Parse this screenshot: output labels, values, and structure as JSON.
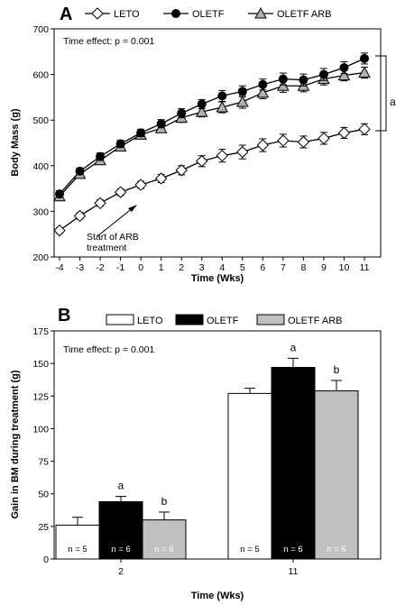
{
  "chart_data": [
    {
      "type": "line",
      "panel_label": "A",
      "xlabel": "Time (Wks)",
      "ylabel": "Body Mass (g)",
      "xlim": [
        -4,
        11
      ],
      "ylim": [
        200,
        700
      ],
      "x_ticks": [
        "-4",
        "-3",
        "-2",
        "-1",
        "0",
        "1",
        "2",
        "3",
        "4",
        "5",
        "6",
        "7",
        "8",
        "9",
        "10",
        "11"
      ],
      "y_ticks": [
        "200",
        "300",
        "400",
        "500",
        "600",
        "700"
      ],
      "annotation_text": "Time effect: p = 0.001",
      "arrow_text_line1": "Start of ARB",
      "arrow_text_line2": "treatment",
      "bracket_label": "a",
      "legend_placement": "top",
      "x": [
        -4,
        -3,
        -2,
        -1,
        0,
        1,
        2,
        3,
        4,
        5,
        6,
        7,
        8,
        9,
        10,
        11
      ],
      "series": [
        {
          "name": "LETO",
          "marker": "diamond-open",
          "values": [
            258,
            290,
            318,
            342,
            358,
            372,
            390,
            410,
            422,
            430,
            445,
            455,
            452,
            460,
            472,
            480
          ],
          "err": [
            6,
            7,
            7,
            7,
            8,
            9,
            10,
            12,
            14,
            15,
            14,
            14,
            13,
            13,
            12,
            12
          ]
        },
        {
          "name": "OLETF",
          "marker": "circle-filled",
          "values": [
            338,
            388,
            420,
            448,
            472,
            492,
            515,
            535,
            553,
            563,
            578,
            590,
            588,
            600,
            615,
            635
          ],
          "err": [
            7,
            7,
            8,
            8,
            8,
            9,
            10,
            10,
            12,
            12,
            12,
            13,
            13,
            13,
            13,
            12
          ]
        },
        {
          "name": "OLETF ARB",
          "marker": "triangle-gray",
          "values": [
            333,
            382,
            412,
            442,
            468,
            482,
            505,
            518,
            528,
            540,
            560,
            575,
            575,
            590,
            598,
            604
          ],
          "err": [
            7,
            7,
            8,
            8,
            8,
            9,
            10,
            11,
            12,
            14,
            13,
            14,
            13,
            13,
            12,
            12
          ]
        }
      ]
    },
    {
      "type": "bar",
      "panel_label": "B",
      "xlabel": "Time (Wks)",
      "ylabel": "Gain in BM during treatment (g)",
      "ylim": [
        0,
        175
      ],
      "y_ticks": [
        "0",
        "25",
        "50",
        "75",
        "100",
        "125",
        "150",
        "175"
      ],
      "categories": [
        "2",
        "11"
      ],
      "annotation_text": "Time effect: p = 0.001",
      "legend_placement": "top",
      "series": [
        {
          "name": "LETO",
          "fill": "#ffffff",
          "values": [
            26,
            127
          ],
          "err": [
            6,
            4
          ],
          "n_labels": [
            "n = 5",
            "n = 5"
          ],
          "sig": [
            "",
            ""
          ],
          "n_color": "#000000"
        },
        {
          "name": "OLETF",
          "fill": "#000000",
          "values": [
            44,
            147
          ],
          "err": [
            4,
            7
          ],
          "n_labels": [
            "n = 6",
            "n = 6"
          ],
          "sig": [
            "a",
            "a"
          ],
          "n_color": "#ffffff"
        },
        {
          "name": "OLETF ARB",
          "fill": "#c0c0c0",
          "values": [
            30,
            129
          ],
          "err": [
            6,
            8
          ],
          "n_labels": [
            "n = 6",
            "n = 6"
          ],
          "sig": [
            "b",
            "b"
          ],
          "n_color": "#ffffff"
        }
      ]
    }
  ]
}
